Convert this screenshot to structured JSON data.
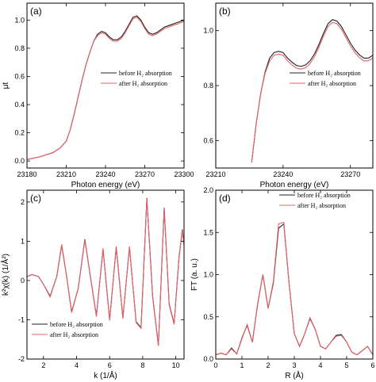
{
  "chart_data": [
    {
      "type": "line",
      "panel": "(a)",
      "xlabel": "Photon energy (eV)",
      "ylabel": "μt",
      "xlim": [
        23180,
        23300
      ],
      "ylim": [
        -0.05,
        1.12
      ],
      "xticks": [
        23180,
        23210,
        23240,
        23270,
        23300
      ],
      "yticks": [
        0.0,
        0.2,
        0.4,
        0.6,
        0.8,
        1.0
      ],
      "ytick_decimals": 1,
      "legend_position": "right",
      "series": [
        {
          "name": "before H₂ absorption",
          "color": "#222222",
          "x": [
            23180,
            23190,
            23200,
            23205,
            23210,
            23213,
            23216,
            23219,
            23222,
            23225,
            23228,
            23231,
            23234,
            23237,
            23240,
            23243,
            23246,
            23249,
            23252,
            23255,
            23258,
            23261,
            23264,
            23267,
            23270,
            23273,
            23276,
            23279,
            23282,
            23285,
            23288,
            23291,
            23294,
            23297,
            23300
          ],
          "y": [
            0.01,
            0.03,
            0.06,
            0.09,
            0.14,
            0.22,
            0.33,
            0.45,
            0.57,
            0.68,
            0.77,
            0.85,
            0.9,
            0.92,
            0.91,
            0.88,
            0.86,
            0.86,
            0.88,
            0.92,
            0.97,
            1.02,
            1.03,
            1.0,
            0.95,
            0.91,
            0.9,
            0.91,
            0.93,
            0.95,
            0.96,
            0.97,
            0.98,
            0.99,
            1.0
          ]
        },
        {
          "name": "after H₂ absorption",
          "color": "#e8606b",
          "x": [
            23180,
            23190,
            23200,
            23205,
            23210,
            23213,
            23216,
            23219,
            23222,
            23225,
            23228,
            23231,
            23234,
            23237,
            23240,
            23243,
            23246,
            23249,
            23252,
            23255,
            23258,
            23261,
            23264,
            23267,
            23270,
            23273,
            23276,
            23279,
            23282,
            23285,
            23288,
            23291,
            23294,
            23297,
            23300
          ],
          "y": [
            0.01,
            0.03,
            0.06,
            0.09,
            0.14,
            0.22,
            0.33,
            0.45,
            0.57,
            0.68,
            0.77,
            0.85,
            0.89,
            0.91,
            0.9,
            0.87,
            0.85,
            0.85,
            0.87,
            0.91,
            0.96,
            1.01,
            1.02,
            0.99,
            0.94,
            0.9,
            0.89,
            0.9,
            0.92,
            0.94,
            0.95,
            0.96,
            0.97,
            0.98,
            0.99
          ]
        }
      ]
    },
    {
      "type": "line",
      "panel": "(b)",
      "xlabel": "Photon energy (eV)",
      "ylabel": "",
      "xlim": [
        23210,
        23280
      ],
      "ylim": [
        0.5,
        1.1
      ],
      "xticks": [
        23210,
        23240,
        23270
      ],
      "yticks": [
        0.6,
        0.8,
        1.0
      ],
      "ytick_decimals": 1,
      "legend_position": "right",
      "series": [
        {
          "name": "before H₂ absorption",
          "color": "#222222",
          "x": [
            23226,
            23228,
            23230,
            23232,
            23234,
            23236,
            23238,
            23240,
            23242,
            23244,
            23246,
            23248,
            23250,
            23252,
            23254,
            23256,
            23258,
            23260,
            23262,
            23264,
            23266,
            23268,
            23270,
            23272,
            23274,
            23276,
            23278,
            23280
          ],
          "y": [
            0.52,
            0.66,
            0.77,
            0.85,
            0.9,
            0.92,
            0.925,
            0.92,
            0.9,
            0.885,
            0.873,
            0.87,
            0.875,
            0.89,
            0.915,
            0.95,
            0.99,
            1.025,
            1.04,
            1.035,
            1.015,
            0.985,
            0.955,
            0.93,
            0.912,
            0.9,
            0.9,
            0.91
          ]
        },
        {
          "name": "after H₂ absorption",
          "color": "#e8606b",
          "x": [
            23226,
            23228,
            23230,
            23232,
            23234,
            23236,
            23238,
            23240,
            23242,
            23244,
            23246,
            23248,
            23250,
            23252,
            23254,
            23256,
            23258,
            23260,
            23262,
            23264,
            23266,
            23268,
            23270,
            23272,
            23274,
            23276,
            23278,
            23280
          ],
          "y": [
            0.52,
            0.66,
            0.77,
            0.845,
            0.89,
            0.91,
            0.915,
            0.91,
            0.89,
            0.875,
            0.863,
            0.86,
            0.865,
            0.88,
            0.905,
            0.94,
            0.98,
            1.015,
            1.03,
            1.025,
            1.005,
            0.975,
            0.945,
            0.92,
            0.902,
            0.89,
            0.89,
            0.9
          ]
        }
      ]
    },
    {
      "type": "line",
      "panel": "(c)",
      "xlabel": "k (1/Å)",
      "ylabel": "k²χ(k) (1/Å²)",
      "xlim": [
        1,
        10.5
      ],
      "ylim": [
        -2,
        2.3
      ],
      "xticks": [
        2,
        4,
        6,
        8,
        10
      ],
      "yticks": [
        -2,
        -1,
        0,
        1,
        2
      ],
      "ytick_decimals": 0,
      "legend_position": "bottom-left",
      "series": [
        {
          "name": "before H₂ absorption",
          "color": "#222222",
          "x": [
            1.0,
            1.3,
            1.7,
            2.0,
            2.4,
            2.8,
            3.1,
            3.4,
            3.7,
            4.1,
            4.5,
            4.8,
            5.2,
            5.6,
            6.0,
            6.4,
            6.8,
            7.2,
            7.6,
            7.9,
            8.25,
            8.6,
            8.95,
            9.3,
            9.6,
            9.9,
            10.2,
            10.4,
            10.5
          ],
          "y": [
            0.1,
            0.15,
            0.1,
            -0.1,
            -0.4,
            0.1,
            0.9,
            0.1,
            -0.8,
            -0.2,
            1.05,
            0.2,
            -0.9,
            0.8,
            -1.0,
            0.85,
            -0.95,
            0.85,
            -1.05,
            -1.2,
            2.1,
            -0.4,
            -1.65,
            1.85,
            -0.6,
            -1.1,
            0.6,
            1.3,
            0.9
          ]
        },
        {
          "name": "after H₂ absorption",
          "color": "#e8606b",
          "x": [
            1.0,
            1.3,
            1.7,
            2.0,
            2.4,
            2.8,
            3.1,
            3.4,
            3.7,
            4.1,
            4.5,
            4.8,
            5.2,
            5.6,
            6.0,
            6.4,
            6.8,
            7.2,
            7.6,
            7.9,
            8.25,
            8.6,
            8.95,
            9.3,
            9.6,
            9.9,
            10.2,
            10.4,
            10.5
          ],
          "y": [
            0.1,
            0.15,
            0.1,
            -0.1,
            -0.42,
            0.1,
            0.92,
            0.1,
            -0.82,
            -0.2,
            1.03,
            0.2,
            -0.92,
            0.82,
            -1.02,
            0.87,
            -0.97,
            0.87,
            -1.07,
            -1.22,
            2.08,
            -0.42,
            -1.67,
            1.83,
            -0.62,
            -1.12,
            0.62,
            1.28,
            0.88
          ]
        }
      ]
    },
    {
      "type": "line",
      "panel": "(d)",
      "xlabel": "R (Å)",
      "ylabel": "FT (a. u.)",
      "xlim": [
        0,
        6
      ],
      "ylim": [
        0,
        2.0
      ],
      "xticks": [
        0,
        1,
        2,
        3,
        4,
        5,
        6
      ],
      "yticks": [
        0.0,
        0.5,
        1.0,
        1.5,
        2.0
      ],
      "ytick_decimals": 1,
      "legend_position": "top-right",
      "series": [
        {
          "name": "before H₂ absorption",
          "color": "#222222",
          "x": [
            0.0,
            0.2,
            0.4,
            0.6,
            0.8,
            1.0,
            1.2,
            1.4,
            1.6,
            1.8,
            2.0,
            2.2,
            2.4,
            2.6,
            2.8,
            3.0,
            3.2,
            3.4,
            3.6,
            3.8,
            4.0,
            4.2,
            4.4,
            4.6,
            4.8,
            5.0,
            5.2,
            5.4,
            5.6,
            5.8,
            6.0
          ],
          "y": [
            0.05,
            0.07,
            0.05,
            0.13,
            0.06,
            0.25,
            0.4,
            0.2,
            0.65,
            1.0,
            0.6,
            0.9,
            1.55,
            1.6,
            0.9,
            0.3,
            0.15,
            0.3,
            0.48,
            0.35,
            0.15,
            0.12,
            0.2,
            0.28,
            0.29,
            0.2,
            0.08,
            0.05,
            0.1,
            0.15,
            0.05
          ]
        },
        {
          "name": "after H₂ absorption",
          "color": "#e8606b",
          "x": [
            0.0,
            0.2,
            0.4,
            0.6,
            0.8,
            1.0,
            1.2,
            1.4,
            1.6,
            1.8,
            2.0,
            2.2,
            2.4,
            2.6,
            2.8,
            3.0,
            3.2,
            3.4,
            3.6,
            3.8,
            4.0,
            4.2,
            4.4,
            4.6,
            4.8,
            5.0,
            5.2,
            5.4,
            5.6,
            5.8,
            6.0
          ],
          "y": [
            0.05,
            0.07,
            0.05,
            0.12,
            0.06,
            0.24,
            0.41,
            0.2,
            0.66,
            1.0,
            0.6,
            0.92,
            1.6,
            1.62,
            0.9,
            0.3,
            0.15,
            0.3,
            0.49,
            0.35,
            0.15,
            0.12,
            0.2,
            0.27,
            0.28,
            0.2,
            0.08,
            0.05,
            0.1,
            0.15,
            0.05
          ]
        }
      ]
    }
  ]
}
